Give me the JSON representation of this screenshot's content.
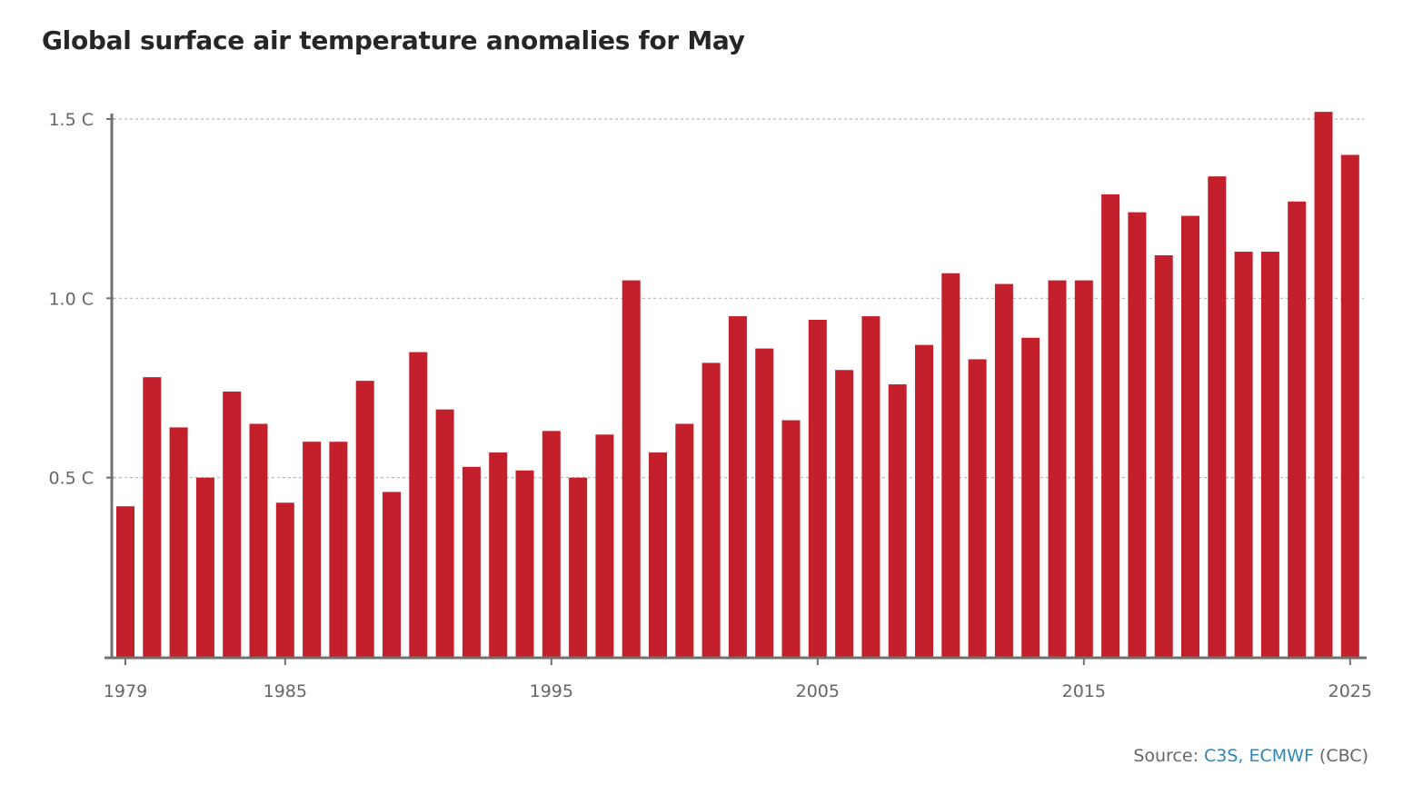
{
  "chart_data": {
    "type": "bar",
    "title": "Global surface air temperature anomalies for May",
    "categories": [
      1979,
      1980,
      1981,
      1982,
      1983,
      1984,
      1985,
      1986,
      1987,
      1988,
      1989,
      1990,
      1991,
      1992,
      1993,
      1994,
      1995,
      1996,
      1997,
      1998,
      1999,
      2000,
      2001,
      2002,
      2003,
      2004,
      2005,
      2006,
      2007,
      2008,
      2009,
      2010,
      2011,
      2012,
      2013,
      2014,
      2015,
      2016,
      2017,
      2018,
      2019,
      2020,
      2021,
      2022,
      2023,
      2024,
      2025
    ],
    "values": [
      0.42,
      0.78,
      0.64,
      0.5,
      0.74,
      0.65,
      0.43,
      0.6,
      0.6,
      0.77,
      0.46,
      0.85,
      0.69,
      0.53,
      0.57,
      0.52,
      0.63,
      0.5,
      0.62,
      1.05,
      0.57,
      0.65,
      0.82,
      0.95,
      0.86,
      0.66,
      0.94,
      0.8,
      0.95,
      0.76,
      0.87,
      1.07,
      0.83,
      1.04,
      0.89,
      1.05,
      1.05,
      1.29,
      1.24,
      1.12,
      1.23,
      1.34,
      1.13,
      1.13,
      1.27,
      1.52,
      1.4
    ],
    "ylim": [
      -0.0,
      1.5
    ],
    "y_ticks": [
      {
        "value": 0.5,
        "label": "0.5 C"
      },
      {
        "value": 1.0,
        "label": "1.0 C"
      },
      {
        "value": 1.5,
        "label": "1.5 C"
      }
    ],
    "x_ticks": [
      {
        "value": 1979,
        "label": "1979"
      },
      {
        "value": 1985,
        "label": "1985"
      },
      {
        "value": 1995,
        "label": "1995"
      },
      {
        "value": 2005,
        "label": "2005"
      },
      {
        "value": 2015,
        "label": "2015"
      },
      {
        "value": 2025,
        "label": "2025"
      }
    ],
    "grid": true,
    "bar_color": "#c3202b",
    "grid_color": "#b5b5b5",
    "axis_color": "#707070"
  },
  "source": {
    "prefix": "Source: ",
    "link_text": "C3S, ECMWF",
    "suffix": " (CBC)",
    "link_color": "#2b87b8"
  }
}
